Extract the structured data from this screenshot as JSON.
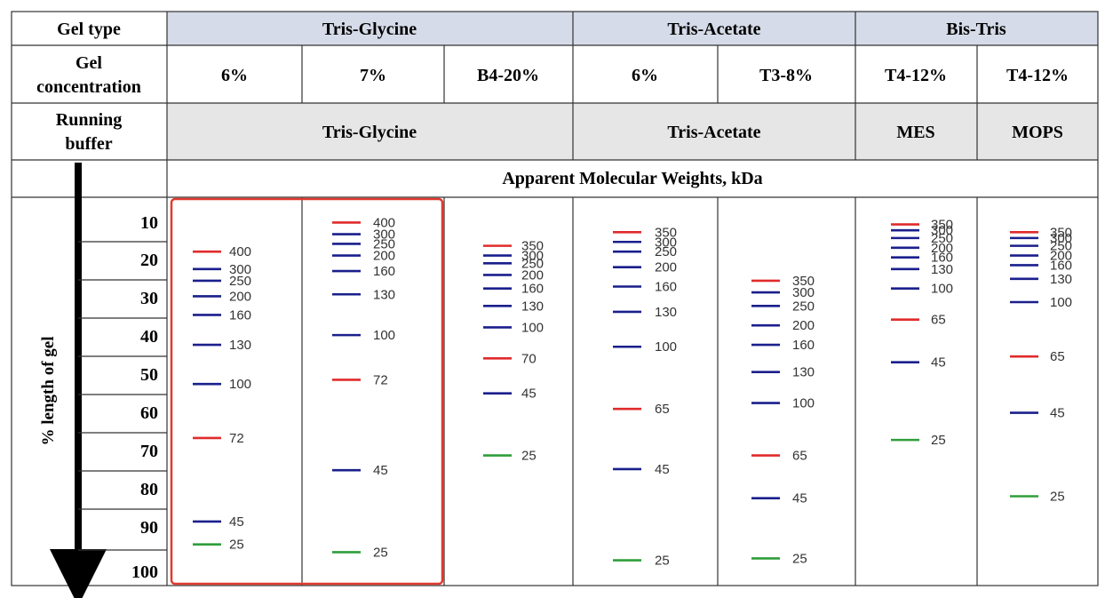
{
  "headers": {
    "gel_type": "Gel type",
    "gel_concentration": [
      "Gel",
      "concentration"
    ],
    "running_buffer": [
      "Running",
      "buffer"
    ],
    "apparent_mw": "Apparent Molecular Weights, kDa",
    "axis_label": "% length of gel"
  },
  "gel_types": [
    "Tris-Glycine",
    "Tris-Acetate",
    "Bis-Tris"
  ],
  "running_buffers": [
    "Tris-Glycine",
    "Tris-Acetate",
    "MES",
    "MOPS"
  ],
  "ruler_ticks": [
    "10",
    "20",
    "30",
    "40",
    "50",
    "60",
    "70",
    "80",
    "90",
    "100"
  ],
  "colors": {
    "blue": "#1a1f8c",
    "red": "#e02b2b",
    "green": "#2e9e3a",
    "highlight": "#e03a2f",
    "header_fill": "#d5dbe8",
    "buffer_fill": "#e6e6e6"
  },
  "columns": [
    {
      "concentration": "6%",
      "bands": [
        {
          "label": "400",
          "pos": 14,
          "color": "red"
        },
        {
          "label": "300",
          "pos": 18.5,
          "color": "blue"
        },
        {
          "label": "250",
          "pos": 21.5,
          "color": "blue"
        },
        {
          "label": "200",
          "pos": 25.5,
          "color": "blue"
        },
        {
          "label": "160",
          "pos": 30.3,
          "color": "blue"
        },
        {
          "label": "130",
          "pos": 38,
          "color": "blue"
        },
        {
          "label": "100",
          "pos": 48.1,
          "color": "blue"
        },
        {
          "label": "72",
          "pos": 62,
          "color": "red"
        },
        {
          "label": "45",
          "pos": 83.5,
          "color": "blue"
        },
        {
          "label": "25",
          "pos": 89.4,
          "color": "green"
        }
      ]
    },
    {
      "concentration": "7%",
      "bands": [
        {
          "label": "400",
          "pos": 6.5,
          "color": "red"
        },
        {
          "label": "300",
          "pos": 9.5,
          "color": "blue"
        },
        {
          "label": "250",
          "pos": 12,
          "color": "blue"
        },
        {
          "label": "200",
          "pos": 15,
          "color": "blue"
        },
        {
          "label": "160",
          "pos": 19,
          "color": "blue"
        },
        {
          "label": "130",
          "pos": 25,
          "color": "blue"
        },
        {
          "label": "100",
          "pos": 35.5,
          "color": "blue"
        },
        {
          "label": "72",
          "pos": 47,
          "color": "red"
        },
        {
          "label": "45",
          "pos": 70.3,
          "color": "blue"
        },
        {
          "label": "25",
          "pos": 91.4,
          "color": "green"
        }
      ]
    },
    {
      "concentration": "B4-20%",
      "bands": [
        {
          "label": "350",
          "pos": 12.5,
          "color": "red"
        },
        {
          "label": "300",
          "pos": 15,
          "color": "blue"
        },
        {
          "label": "250",
          "pos": 17,
          "color": "blue"
        },
        {
          "label": "200",
          "pos": 20,
          "color": "blue"
        },
        {
          "label": "160",
          "pos": 23.5,
          "color": "blue"
        },
        {
          "label": "130",
          "pos": 28,
          "color": "blue"
        },
        {
          "label": "100",
          "pos": 33.5,
          "color": "blue"
        },
        {
          "label": "70",
          "pos": 41.5,
          "color": "red"
        },
        {
          "label": "45",
          "pos": 50.5,
          "color": "blue"
        },
        {
          "label": "25",
          "pos": 66.5,
          "color": "green"
        }
      ]
    },
    {
      "concentration": "6%",
      "bands": [
        {
          "label": "350",
          "pos": 9,
          "color": "red"
        },
        {
          "label": "300",
          "pos": 11.5,
          "color": "blue"
        },
        {
          "label": "250",
          "pos": 14,
          "color": "blue"
        },
        {
          "label": "200",
          "pos": 18,
          "color": "blue"
        },
        {
          "label": "160",
          "pos": 23,
          "color": "blue"
        },
        {
          "label": "130",
          "pos": 29.5,
          "color": "blue"
        },
        {
          "label": "100",
          "pos": 38.5,
          "color": "blue"
        },
        {
          "label": "65",
          "pos": 54.5,
          "color": "red"
        },
        {
          "label": "45",
          "pos": 70,
          "color": "blue"
        },
        {
          "label": "25",
          "pos": 93.5,
          "color": "green"
        }
      ]
    },
    {
      "concentration": "T3-8%",
      "bands": [
        {
          "label": "350",
          "pos": 21.5,
          "color": "red"
        },
        {
          "label": "300",
          "pos": 24.5,
          "color": "blue"
        },
        {
          "label": "250",
          "pos": 28,
          "color": "blue"
        },
        {
          "label": "200",
          "pos": 33,
          "color": "blue"
        },
        {
          "label": "160",
          "pos": 38,
          "color": "blue"
        },
        {
          "label": "130",
          "pos": 45,
          "color": "blue"
        },
        {
          "label": "100",
          "pos": 53,
          "color": "blue"
        },
        {
          "label": "65",
          "pos": 66.5,
          "color": "red"
        },
        {
          "label": "45",
          "pos": 77.5,
          "color": "blue"
        },
        {
          "label": "25",
          "pos": 93,
          "color": "green"
        }
      ]
    },
    {
      "concentration": "T4-12%",
      "bands": [
        {
          "label": "350",
          "pos": 7,
          "color": "red"
        },
        {
          "label": "300",
          "pos": 8.5,
          "color": "blue"
        },
        {
          "label": "250",
          "pos": 10.5,
          "color": "blue"
        },
        {
          "label": "200",
          "pos": 13,
          "color": "blue"
        },
        {
          "label": "160",
          "pos": 15.5,
          "color": "blue"
        },
        {
          "label": "130",
          "pos": 18.5,
          "color": "blue"
        },
        {
          "label": "100",
          "pos": 23.5,
          "color": "blue"
        },
        {
          "label": "65",
          "pos": 31.5,
          "color": "red"
        },
        {
          "label": "45",
          "pos": 42.5,
          "color": "blue"
        },
        {
          "label": "25",
          "pos": 62.5,
          "color": "green"
        }
      ]
    },
    {
      "concentration": "T4-12%",
      "bands": [
        {
          "label": "350",
          "pos": 9,
          "color": "red"
        },
        {
          "label": "300",
          "pos": 10.5,
          "color": "blue"
        },
        {
          "label": "250",
          "pos": 12.5,
          "color": "blue"
        },
        {
          "label": "200",
          "pos": 15,
          "color": "blue"
        },
        {
          "label": "160",
          "pos": 17.5,
          "color": "blue"
        },
        {
          "label": "130",
          "pos": 21,
          "color": "blue"
        },
        {
          "label": "100",
          "pos": 27,
          "color": "blue"
        },
        {
          "label": "65",
          "pos": 41,
          "color": "red"
        },
        {
          "label": "45",
          "pos": 55.5,
          "color": "blue"
        },
        {
          "label": "25",
          "pos": 77,
          "color": "green"
        }
      ]
    }
  ]
}
